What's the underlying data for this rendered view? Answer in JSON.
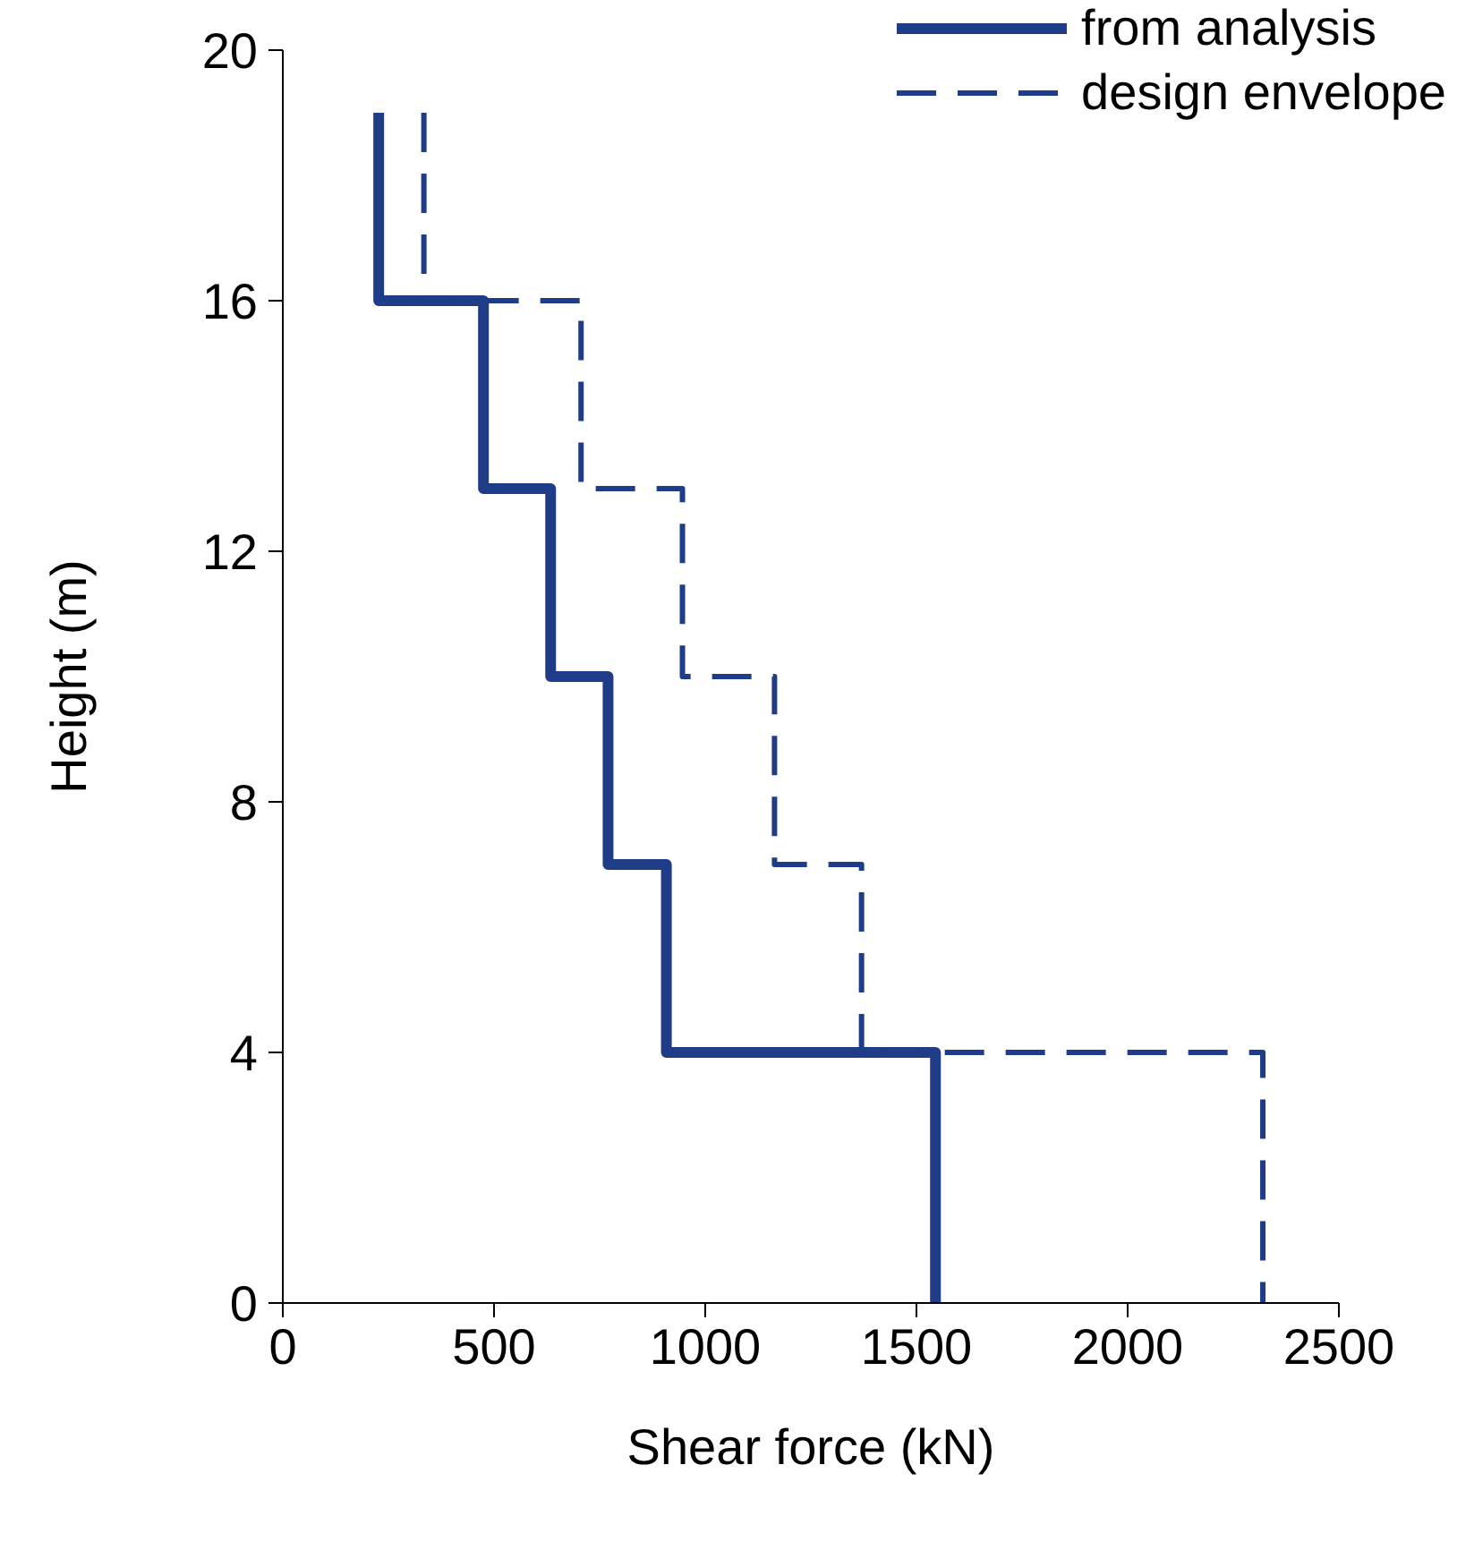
{
  "chart_data": {
    "type": "line",
    "xlabel": "Shear force (kN)",
    "ylabel": "Height (m)",
    "xlim": [
      0,
      2500
    ],
    "xticks": [
      0,
      500,
      1000,
      1500,
      2000,
      2500
    ],
    "ylim": [
      0,
      20
    ],
    "yticks": [
      0,
      4,
      8,
      12,
      16,
      20
    ],
    "grid": false,
    "legend": "top right",
    "marker": "none",
    "series": [
      {
        "name": "from analysis",
        "color": "#1f3c88",
        "line_style": "solid",
        "x": [
          227,
          227,
          475,
          475,
          634,
          634,
          770,
          770,
          908,
          908,
          1545,
          1545
        ],
        "values": [
          19,
          16,
          16,
          13,
          13,
          10,
          10,
          7,
          7,
          4,
          4,
          0
        ]
      },
      {
        "name": "design envelope",
        "color": "#1f3c88",
        "line_style": "dashed",
        "x": [
          334,
          334,
          706,
          706,
          946,
          946,
          1164,
          1164,
          1370,
          1370,
          2320,
          2320
        ],
        "values": [
          19,
          16,
          16,
          13,
          13,
          10,
          10,
          7,
          7,
          4,
          4,
          0
        ]
      }
    ]
  }
}
